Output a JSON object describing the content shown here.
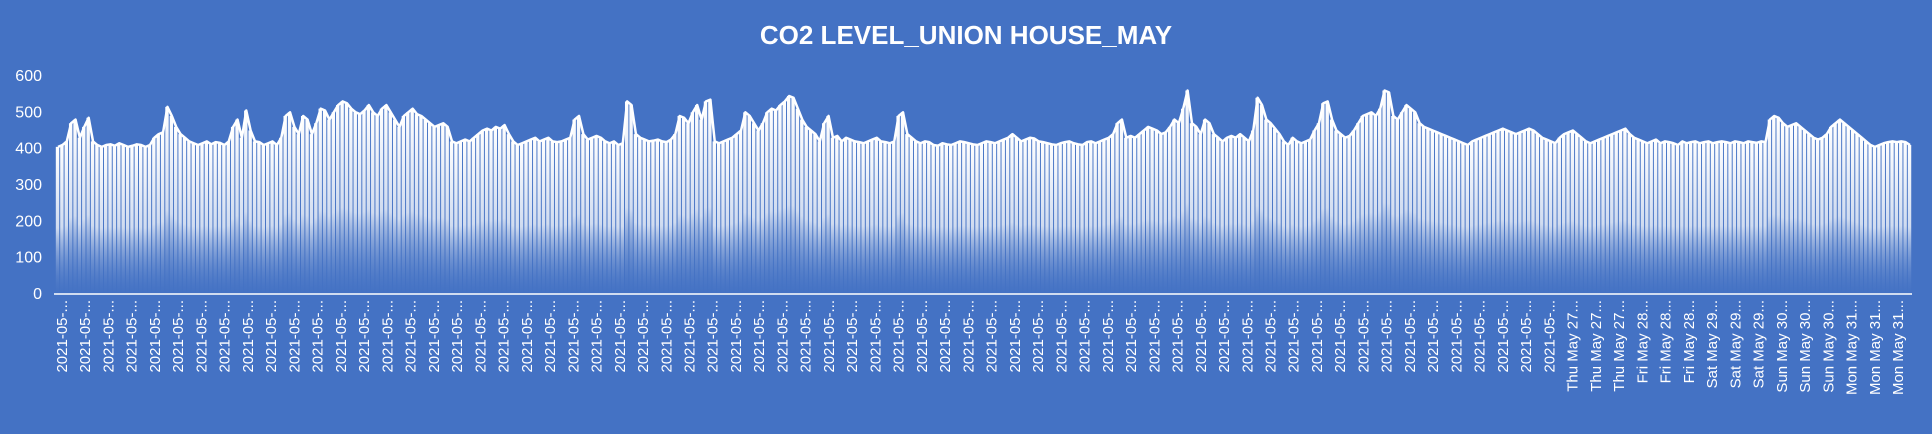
{
  "colors": {
    "background": "#4472C4",
    "area_top": "#ffffff",
    "area_bottom": "#4472C4",
    "line": "#ffffff",
    "text": "#ffffff"
  },
  "chart_data": {
    "type": "area",
    "title": "CO2 LEVEL_UNION HOUSE_MAY",
    "xlabel": "",
    "ylabel": "",
    "ylim": [
      0,
      600
    ],
    "yticks": [
      0,
      100,
      200,
      300,
      400,
      500,
      600
    ],
    "grid": false,
    "legend": "none",
    "x_tick_labels": [
      "2021-05-...",
      "2021-05-...",
      "2021-05-...",
      "2021-05-...",
      "2021-05-...",
      "2021-05-...",
      "2021-05-...",
      "2021-05-...",
      "2021-05-...",
      "2021-05-...",
      "2021-05-...",
      "2021-05-...",
      "2021-05-...",
      "2021-05-...",
      "2021-05-...",
      "2021-05-...",
      "2021-05-...",
      "2021-05-...",
      "2021-05-...",
      "2021-05-...",
      "2021-05-...",
      "2021-05-...",
      "2021-05-...",
      "2021-05-...",
      "2021-05-...",
      "2021-05-...",
      "2021-05-...",
      "2021-05-...",
      "2021-05-...",
      "2021-05-...",
      "2021-05-...",
      "2021-05-...",
      "2021-05-...",
      "2021-05-...",
      "2021-05-...",
      "2021-05-...",
      "2021-05-...",
      "2021-05-...",
      "2021-05-...",
      "2021-05-...",
      "2021-05-...",
      "2021-05-...",
      "2021-05-...",
      "2021-05-...",
      "2021-05-...",
      "2021-05-...",
      "2021-05-...",
      "2021-05-...",
      "2021-05-...",
      "2021-05-...",
      "2021-05-...",
      "2021-05-...",
      "2021-05-...",
      "2021-05-...",
      "2021-05-...",
      "2021-05-...",
      "2021-05-...",
      "2021-05-...",
      "2021-05-...",
      "2021-05-...",
      "2021-05-...",
      "2021-05-...",
      "2021-05-...",
      "2021-05-...",
      "2021-05-...",
      "Thu May 27...",
      "Thu May 27...",
      "Thu May 27...",
      "Fri May 28...",
      "Fri May 28...",
      "Fri May 28...",
      "Sat May 29...",
      "Sat May 29...",
      "Sat May 29...",
      "Sun May 30...",
      "Sun May 30...",
      "Sun May 30...",
      "Mon May 31...",
      "Mon May 31...",
      "Mon May 31..."
    ],
    "series": [
      {
        "values": [
          405,
          410,
          420,
          470,
          480,
          430,
          460,
          485,
          420,
          410,
          405,
          410,
          412,
          408,
          415,
          410,
          405,
          408,
          412,
          410,
          405,
          410,
          430,
          440,
          445,
          515,
          490,
          460,
          440,
          430,
          420,
          415,
          410,
          415,
          420,
          412,
          418,
          416,
          410,
          420,
          460,
          480,
          430,
          505,
          450,
          420,
          418,
          410,
          415,
          420,
          410,
          430,
          490,
          500,
          460,
          440,
          490,
          480,
          440,
          470,
          510,
          505,
          480,
          500,
          520,
          530,
          525,
          510,
          500,
          495,
          505,
          520,
          500,
          490,
          510,
          520,
          500,
          480,
          460,
          490,
          500,
          510,
          495,
          490,
          480,
          470,
          460,
          465,
          470,
          460,
          420,
          415,
          420,
          425,
          420,
          430,
          440,
          450,
          455,
          450,
          460,
          455,
          465,
          440,
          420,
          410,
          415,
          420,
          425,
          430,
          420,
          425,
          430,
          420,
          418,
          420,
          425,
          430,
          480,
          490,
          440,
          425,
          430,
          435,
          430,
          420,
          415,
          420,
          410,
          415,
          530,
          520,
          440,
          430,
          425,
          420,
          422,
          425,
          420,
          418,
          425,
          440,
          490,
          485,
          470,
          500,
          520,
          480,
          530,
          535,
          420,
          415,
          420,
          425,
          430,
          440,
          450,
          500,
          490,
          470,
          450,
          470,
          500,
          510,
          505,
          520,
          530,
          545,
          540,
          510,
          480,
          460,
          450,
          440,
          420,
          470,
          490,
          430,
          435,
          420,
          430,
          425,
          420,
          418,
          415,
          420,
          425,
          430,
          420,
          418,
          415,
          420,
          490,
          500,
          440,
          430,
          420,
          415,
          420,
          418,
          410,
          408,
          415,
          412,
          410,
          415,
          420,
          418,
          415,
          412,
          410,
          415,
          420,
          418,
          415,
          420,
          425,
          430,
          440,
          430,
          420,
          425,
          430,
          428,
          420,
          418,
          415,
          412,
          410,
          415,
          418,
          420,
          415,
          412,
          410,
          418,
          420,
          415,
          420,
          425,
          430,
          440,
          470,
          480,
          430,
          435,
          430,
          440,
          450,
          460,
          455,
          450,
          440,
          445,
          460,
          480,
          470,
          510,
          560,
          470,
          460,
          440,
          480,
          470,
          440,
          430,
          420,
          430,
          435,
          430,
          440,
          430,
          420,
          450,
          540,
          520,
          480,
          470,
          455,
          440,
          420,
          410,
          430,
          420,
          415,
          420,
          425,
          450,
          470,
          525,
          530,
          480,
          450,
          440,
          430,
          435,
          450,
          470,
          490,
          495,
          500,
          490,
          510,
          560,
          555,
          490,
          480,
          500,
          520,
          510,
          500,
          470,
          460,
          455,
          450,
          445,
          440,
          435,
          430,
          425,
          420,
          415,
          410,
          420,
          425,
          430,
          435,
          440,
          445,
          450,
          455,
          450,
          445,
          440,
          445,
          450,
          455,
          450,
          440,
          430,
          425,
          420,
          415,
          430,
          440,
          445,
          450,
          440,
          430,
          420,
          415,
          420,
          425,
          430,
          435,
          440,
          445,
          450,
          455,
          440,
          430,
          425,
          420,
          415,
          420,
          425,
          415,
          420,
          418,
          415,
          410,
          420,
          415,
          418,
          420,
          415,
          418,
          420,
          415,
          418,
          420,
          418,
          415,
          420,
          418,
          415,
          420,
          418,
          416,
          420,
          418,
          480,
          490,
          485,
          470,
          460,
          465,
          470,
          460,
          450,
          440,
          430,
          425,
          430,
          440,
          460,
          470,
          480,
          470,
          460,
          450,
          440,
          430,
          420,
          410,
          405,
          410,
          415,
          418,
          420,
          418,
          420,
          418,
          410
        ]
      }
    ]
  }
}
